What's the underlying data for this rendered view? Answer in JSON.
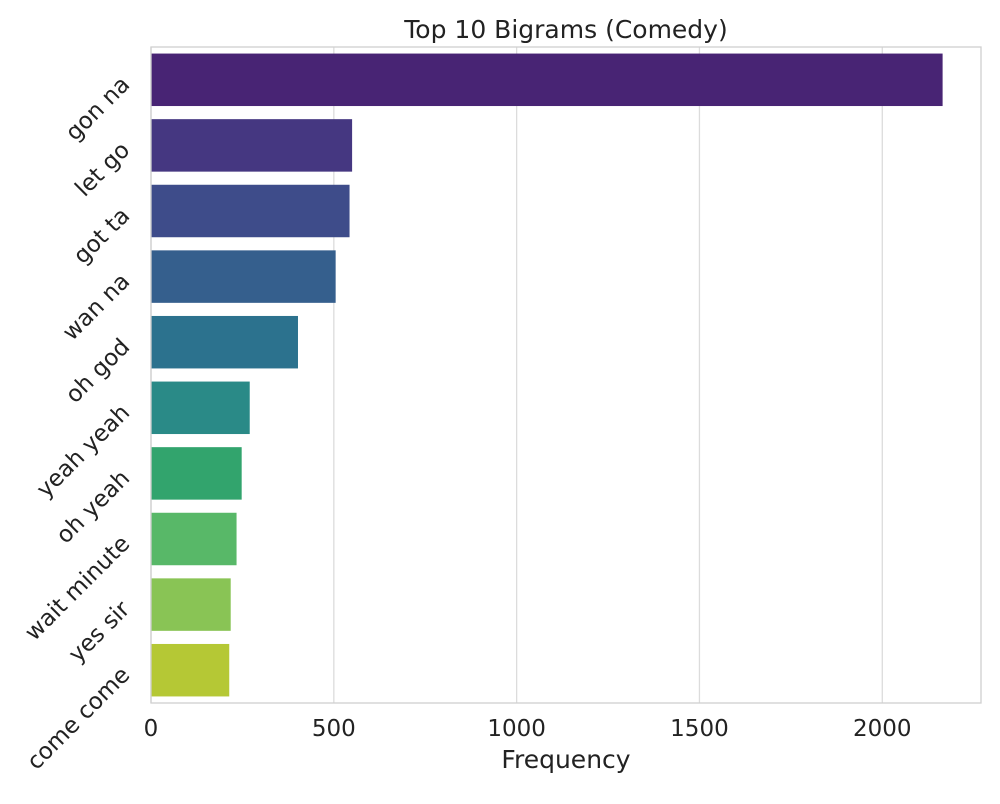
{
  "chart_data": {
    "type": "bar",
    "orientation": "horizontal",
    "title": "Top 10 Bigrams (Comedy)",
    "xlabel": "Frequency",
    "ylabel": "",
    "categories": [
      "gon na",
      "let go",
      "got ta",
      "wan na",
      "oh god",
      "yeah yeah",
      "oh yeah",
      "wait minute",
      "yes sir",
      "come come"
    ],
    "values": [
      2165,
      550,
      543,
      505,
      402,
      270,
      248,
      234,
      218,
      214
    ],
    "xlim": [
      0,
      2270
    ],
    "xticks": [
      0,
      500,
      1000,
      1500,
      2000
    ],
    "xtick_labels": [
      "0",
      "500",
      "1000",
      "1500",
      "2000"
    ],
    "grid": "vertical",
    "colors": [
      "#482474",
      "#453781",
      "#3e4c8a",
      "#355f8d",
      "#2c728e",
      "#2a8a87",
      "#32a46d",
      "#58b868",
      "#89c455",
      "#b5c835"
    ],
    "grid_color": "#dcdcdc",
    "spine_color": "#cfcfcf"
  }
}
